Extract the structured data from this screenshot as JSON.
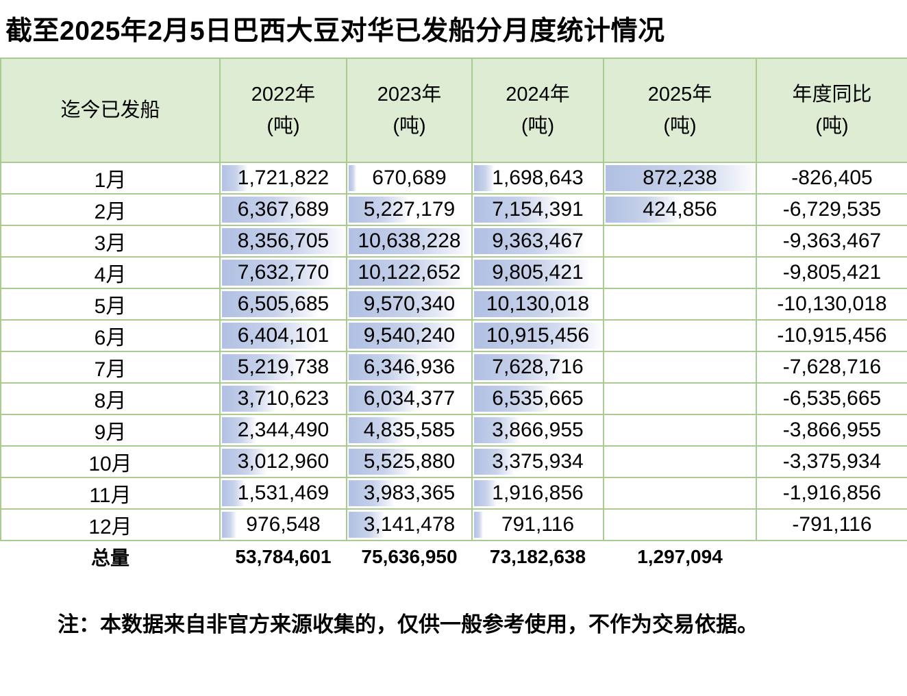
{
  "title": "截至2025年2月5日巴西大豆对华已发船分月度统计情况",
  "note": "注：本数据来自非官方来源收集的，仅供一般参考使用，不作为交易依据。",
  "table": {
    "corner_header": "迄今已发船",
    "unit": "(吨)",
    "year_headers": [
      "2022年",
      "2023年",
      "2024年",
      "2025年"
    ],
    "yoy_header": "年度同比",
    "total_label": "总量"
  },
  "chart_data": {
    "type": "table",
    "title": "截至2025年2月5日巴西大豆对华已发船分月度统计情况",
    "categories": [
      "1月",
      "2月",
      "3月",
      "4月",
      "5月",
      "6月",
      "7月",
      "8月",
      "9月",
      "10月",
      "11月",
      "12月"
    ],
    "series": [
      {
        "name": "2022年(吨)",
        "values": [
          1721822,
          6367689,
          8356705,
          7632770,
          6505685,
          6404101,
          5219738,
          3710623,
          2344490,
          3012960,
          1531469,
          976548
        ]
      },
      {
        "name": "2023年(吨)",
        "values": [
          670689,
          5227179,
          10638228,
          10122652,
          9570340,
          9540240,
          6346936,
          6034377,
          4835585,
          5525880,
          3983365,
          3141478
        ]
      },
      {
        "name": "2024年(吨)",
        "values": [
          1698643,
          7154391,
          9363467,
          9805421,
          10130018,
          10915456,
          7628716,
          6535665,
          3866955,
          3375934,
          1916856,
          791116
        ]
      },
      {
        "name": "2025年(吨)",
        "values": [
          872238,
          424856,
          null,
          null,
          null,
          null,
          null,
          null,
          null,
          null,
          null,
          null
        ]
      },
      {
        "name": "年度同比(吨)",
        "values": [
          -826405,
          -6729535,
          -9363467,
          -9805421,
          -10130018,
          -10915456,
          -7628716,
          -6535665,
          -3866955,
          -3375934,
          -1916856,
          -791116
        ]
      }
    ],
    "totals": [
      53784601,
      75636950,
      73182638,
      1297094,
      null
    ],
    "layout": "data bars in year columns scaled to each column maximum, gradient blue"
  },
  "colors": {
    "header_bg": "#deecd4",
    "grid_border": "#a9cb90",
    "bar_start": "#b1c0e3",
    "bar_end": "#fdfdff",
    "text": "#000000"
  }
}
